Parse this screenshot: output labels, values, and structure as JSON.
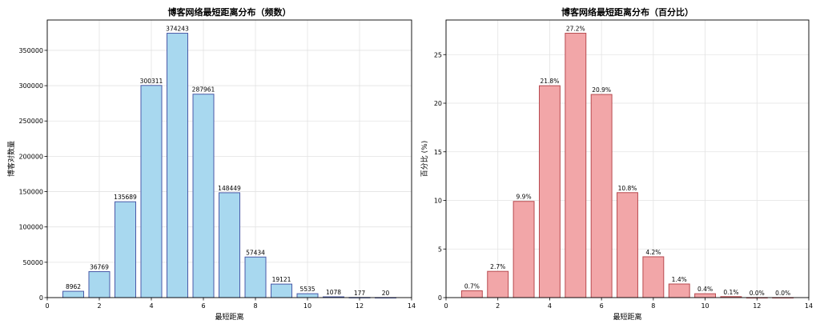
{
  "chart_data": [
    {
      "type": "bar",
      "title": "博客网络最短距离分布（频数）",
      "xlabel": "最短距离",
      "ylabel": "博客对数量",
      "x": [
        1,
        2,
        3,
        4,
        5,
        6,
        7,
        8,
        9,
        10,
        11,
        12,
        13
      ],
      "values": [
        8962,
        36769,
        135689,
        300311,
        374243,
        287961,
        148449,
        57434,
        19121,
        5535,
        1078,
        177,
        20
      ],
      "data_labels": [
        "8962",
        "36769",
        "135689",
        "300311",
        "374243",
        "287961",
        "148449",
        "57434",
        "19121",
        "5535",
        "1078",
        "177",
        "20"
      ],
      "xlim": [
        0,
        14
      ],
      "ylim": [
        0,
        392955
      ],
      "xticks": [
        0,
        2,
        4,
        6,
        8,
        10,
        12,
        14
      ],
      "yticks": [
        0,
        50000,
        100000,
        150000,
        200000,
        250000,
        300000,
        350000
      ],
      "grid": true,
      "colors": {
        "fill": "#a8d8ef",
        "edge": "#4a5aa8"
      }
    },
    {
      "type": "bar",
      "title": "博客网络最短距离分布（百分比）",
      "xlabel": "最短距离",
      "ylabel": "百分比 (%)",
      "x": [
        1,
        2,
        3,
        4,
        5,
        6,
        7,
        8,
        9,
        10,
        11,
        12,
        13
      ],
      "values": [
        0.7,
        2.7,
        9.9,
        21.8,
        27.2,
        20.9,
        10.8,
        4.2,
        1.4,
        0.4,
        0.1,
        0.0,
        0.0
      ],
      "data_labels": [
        "0.7%",
        "2.7%",
        "9.9%",
        "21.8%",
        "27.2%",
        "20.9%",
        "10.8%",
        "4.2%",
        "1.4%",
        "0.4%",
        "0.1%",
        "0.0%",
        "0.0%"
      ],
      "xlim": [
        0,
        14
      ],
      "ylim": [
        0,
        28.56
      ],
      "xticks": [
        0,
        2,
        4,
        6,
        8,
        10,
        12,
        14
      ],
      "yticks": [
        0,
        5,
        10,
        15,
        20,
        25
      ],
      "grid": true,
      "colors": {
        "fill": "#f2a6a8",
        "edge": "#b84a4f"
      }
    }
  ]
}
